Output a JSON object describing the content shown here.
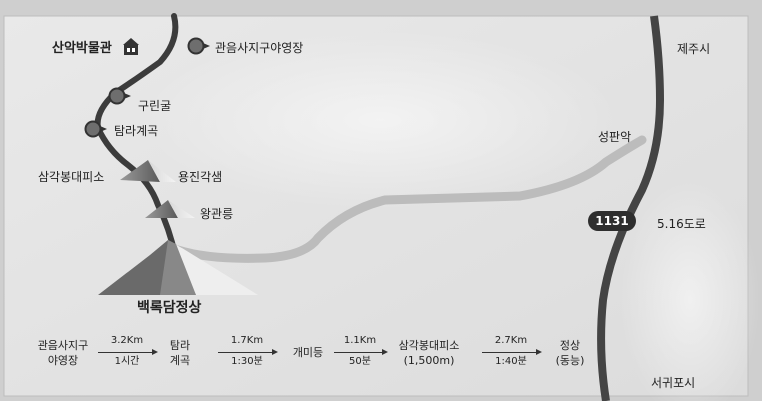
{
  "places": {
    "museum": "산악박물관",
    "campground": "관음사지구야영장",
    "gurin": "구린굴",
    "tamna": "탐라계곡",
    "samgak": "삼각봉대피소",
    "yongjin": "용진각샘",
    "wanggwan": "왕관릉",
    "peak": "백록담정상",
    "jeju": "제주시",
    "seongpanak": "성판악",
    "seogwipo": "서귀포시",
    "road_name": "5.16도로",
    "road_number": "1131"
  },
  "route": {
    "stops": [
      {
        "line1": "관음사지구",
        "line2": "야영장"
      },
      {
        "line1": "탐라",
        "line2": "계곡"
      },
      {
        "line1": "개미등",
        "line2": ""
      },
      {
        "line1": "삼각봉대피소",
        "line2": "(1,500m)"
      },
      {
        "line1": "정상",
        "line2": "(동능)"
      }
    ],
    "segments": [
      {
        "distance": "3.2Km",
        "time": "1시간"
      },
      {
        "distance": "1.7Km",
        "time": "1:30분"
      },
      {
        "distance": "1.1Km",
        "time": "50분"
      },
      {
        "distance": "2.7Km",
        "time": "1:40분"
      }
    ]
  },
  "colors": {
    "background": "#cfcfcf",
    "trail": "#3c3c3c",
    "road": "#bfbfbf",
    "marker": "#6e6e6e"
  },
  "icons": {
    "museum": "house-icon",
    "stop": "pin-marker-icon",
    "peak": "mountain-icon"
  }
}
